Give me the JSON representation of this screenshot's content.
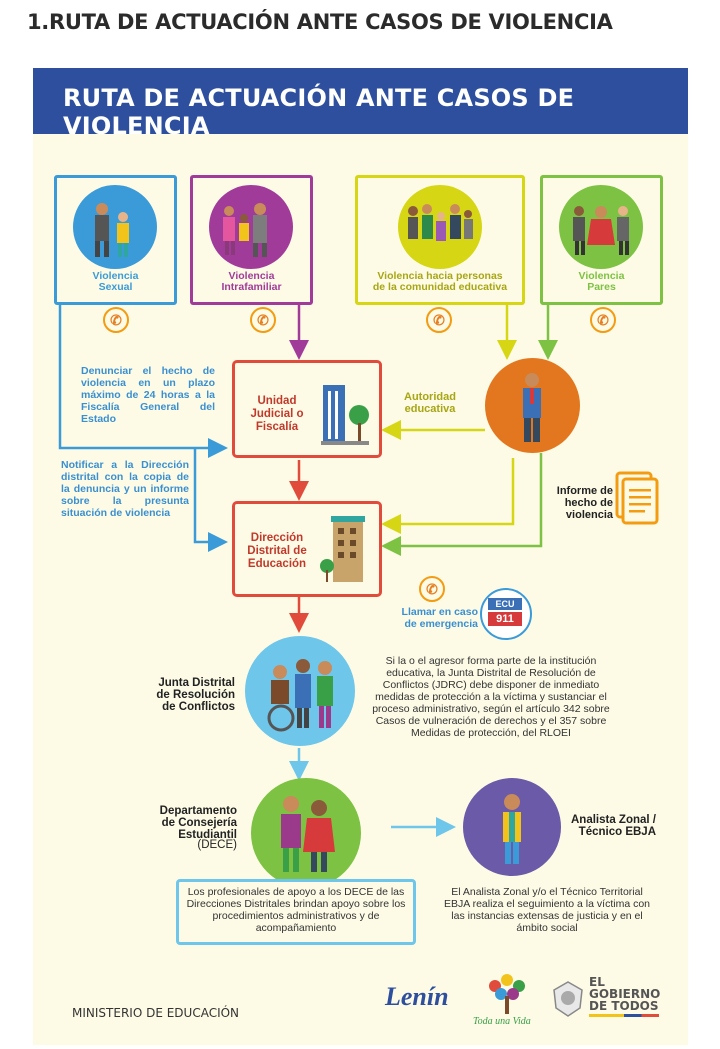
{
  "page_heading": "1.RUTA DE ACTUACIÓN ANTE CASOS DE VIOLENCIA",
  "banner_title": "RUTA DE ACTUACIÓN ANTE CASOS DE VIOLENCIA",
  "categories": [
    {
      "line1": "Violencia",
      "line2": "Sexual",
      "color": "#3b9bd8"
    },
    {
      "line1": "Violencia",
      "line2": "Intrafamiliar",
      "color": "#a13b9a"
    },
    {
      "line1": "Violencia hacia personas",
      "line2": "de la comunidad educativa",
      "color": "#d6d615"
    },
    {
      "line1": "Violencia",
      "line2": "Pares",
      "color": "#7dc242"
    }
  ],
  "denunciar_text": "Denunciar el hecho de violencia en un plazo máximo de 24 horas a la Fiscalía General del Estado",
  "notificar_text": "Notificar a la Dirección distrital con la copia de la denuncia y un informe sobre la presunta situación de violencia",
  "unidad_judicial": "Unidad Judicial o Fiscalía",
  "autoridad": "Autoridad educativa",
  "informe": "Informe de hecho de violencia",
  "direccion_distrital": "Dirección Distrital de Educación",
  "llamar": "Llamar en caso de emergencia",
  "ecu_logo": {
    "top": "ECU",
    "bottom": "911"
  },
  "junta_label": "Junta Distrital de Resolución de Conflictos",
  "junta_text": "Si la o el agresor forma parte de la institución educativa, la Junta Distrital de Resolución de Conflictos (JDRC) debe disponer de inmediato medidas de protección a la víctima y sustanciar el proceso administrativo, según el artículo 342 sobre Casos de vulneración de derechos y el 357 sobre Medidas de protección, del RLOEI",
  "dece_label": "Departamento de Consejería Estudiantil",
  "dece_sub": "(DECE)",
  "analista_label": "Analista Zonal / Técnico EBJA",
  "profesionales_text": "Los profesionales de apoyo a los DECE de las Direcciones Distritales brindan apoyo sobre los procedimientos administrativos y de acompañamiento",
  "analista_text": "El Analista Zonal y/o el Técnico Territorial EBJA realiza el seguimiento a la víctima con las instancias extensas de justicia y en el ámbito social",
  "footer": {
    "ministerio": "MINISTERIO DE EDUCACIÓN",
    "lenin": "Lenín",
    "toda_una_vida": "Toda una Vida",
    "gobierno_line1": "EL",
    "gobierno_line2": "GOBIERNO",
    "gobierno_line3": "DE TODOS"
  },
  "phone_glyph": "✆"
}
